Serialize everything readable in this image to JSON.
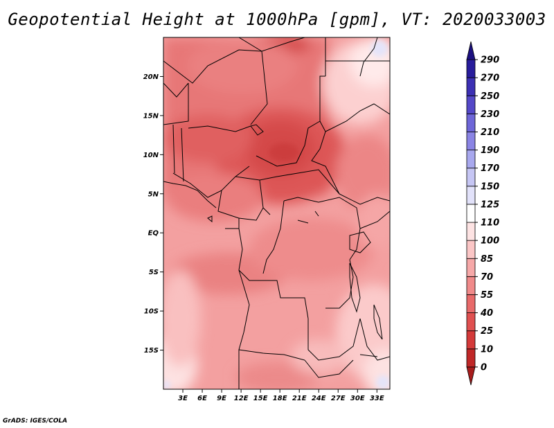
{
  "title": "Geopotential Height at 1000hPa [gpm], VT: 2020033003",
  "footer": "GrADS: IGES/COLA",
  "map": {
    "lon_ticks": [
      "3E",
      "6E",
      "9E",
      "12E",
      "15E",
      "18E",
      "21E",
      "24E",
      "27E",
      "30E",
      "33E"
    ],
    "lat_ticks": [
      "20N",
      "15N",
      "10N",
      "5N",
      "EQ",
      "5S",
      "10S",
      "15S"
    ],
    "lon_range": [
      0,
      35
    ],
    "lat_range": [
      -20,
      25
    ]
  },
  "colorbar": {
    "levels": [
      "0",
      "10",
      "25",
      "40",
      "55",
      "70",
      "85",
      "100",
      "110",
      "125",
      "150",
      "170",
      "190",
      "210",
      "230",
      "250",
      "270",
      "290"
    ],
    "colors": [
      "#a81c1c",
      "#c02828",
      "#d43a3a",
      "#e05050",
      "#e86a6a",
      "#f08a8a",
      "#f6a8a8",
      "#fbc6c6",
      "#fde3e3",
      "#ffffff",
      "#e2e2fa",
      "#c6c6f4",
      "#a8a8ee",
      "#8a84e4",
      "#6e66d8",
      "#5448c8",
      "#3c30b4",
      "#281c9c",
      "#1c1080"
    ]
  },
  "colors": {
    "ocean": "#f6a5a5",
    "boundary": "#000000",
    "text": "#000000"
  }
}
